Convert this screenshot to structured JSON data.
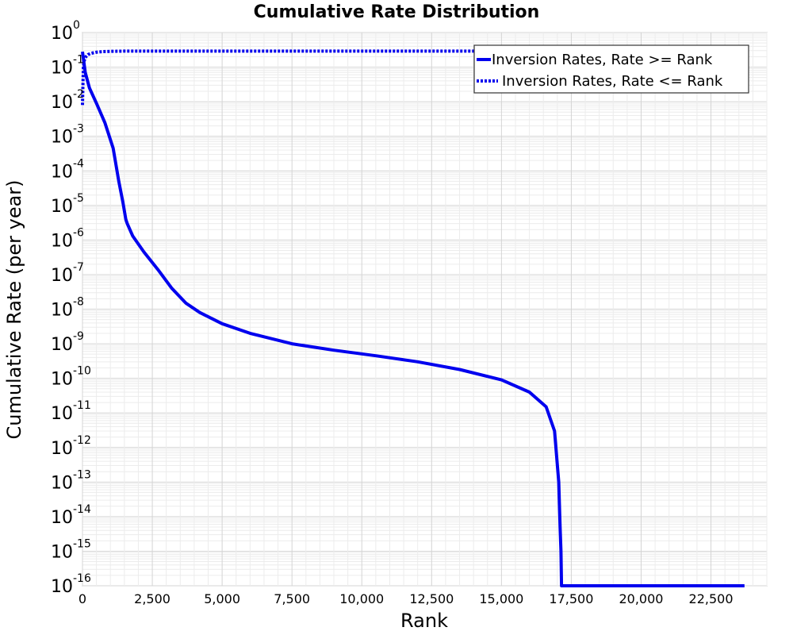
{
  "chart_data": {
    "type": "line",
    "title": "Cumulative Rate Distribution",
    "xlabel": "Rank",
    "ylabel": "Cumulative Rate (per year)",
    "xlim": [
      0,
      24500
    ],
    "ylim": [
      1e-16,
      1
    ],
    "yscale": "log",
    "x_ticks": [
      0,
      2500,
      5000,
      7500,
      10000,
      12500,
      15000,
      17500,
      20000,
      22500
    ],
    "x_tick_labels": [
      "0",
      "2,500",
      "5,000",
      "7,500",
      "10,000",
      "12,500",
      "15,000",
      "17,500",
      "20,000",
      "22,500"
    ],
    "y_tick_exponents": [
      0,
      -1,
      -2,
      -3,
      -4,
      -5,
      -6,
      -7,
      -8,
      -9,
      -10,
      -11,
      -12,
      -13,
      -14,
      -15,
      -16
    ],
    "y_tick_base": "10",
    "grid": true,
    "legend_position": "top-right",
    "series": [
      {
        "name": "Inversion Rates, Rate >= Rank",
        "color": "#0000ee",
        "style": "solid",
        "x": [
          0,
          100,
          250,
          500,
          800,
          1100,
          1300,
          1450,
          1550,
          1600,
          1800,
          2200,
          2700,
          3200,
          3700,
          4200,
          5000,
          6000,
          7500,
          9000,
          10500,
          12000,
          13500,
          15000,
          16000,
          16600,
          16900,
          17050,
          17100,
          17130,
          17150,
          17200,
          19000,
          21000,
          23700
        ],
        "y": [
          0.28,
          0.07,
          0.025,
          0.009,
          0.0025,
          0.00045,
          5e-05,
          1.2e-05,
          4e-06,
          3e-06,
          1.3e-06,
          4.5e-07,
          1.4e-07,
          4e-08,
          1.5e-08,
          8e-09,
          3.8e-09,
          2e-09,
          1e-09,
          6.5e-10,
          4.5e-10,
          3e-10,
          1.8e-10,
          9e-11,
          4e-11,
          1.5e-11,
          3e-12,
          1e-13,
          5e-15,
          1e-15,
          1e-16,
          1e-16,
          1e-16,
          1e-16,
          1e-16
        ]
      },
      {
        "name": "Inversion Rates, Rate <= Rank",
        "color": "#0000ee",
        "style": "dotted",
        "x": [
          0,
          30,
          60,
          100,
          150,
          200,
          300,
          400,
          500,
          700,
          1000,
          1500,
          2500,
          5000,
          10000,
          15000,
          20000,
          23700
        ],
        "y": [
          0.008,
          0.1,
          0.15,
          0.19,
          0.21,
          0.23,
          0.25,
          0.26,
          0.27,
          0.28,
          0.285,
          0.29,
          0.29,
          0.29,
          0.29,
          0.29,
          0.29,
          0.29
        ]
      }
    ]
  }
}
